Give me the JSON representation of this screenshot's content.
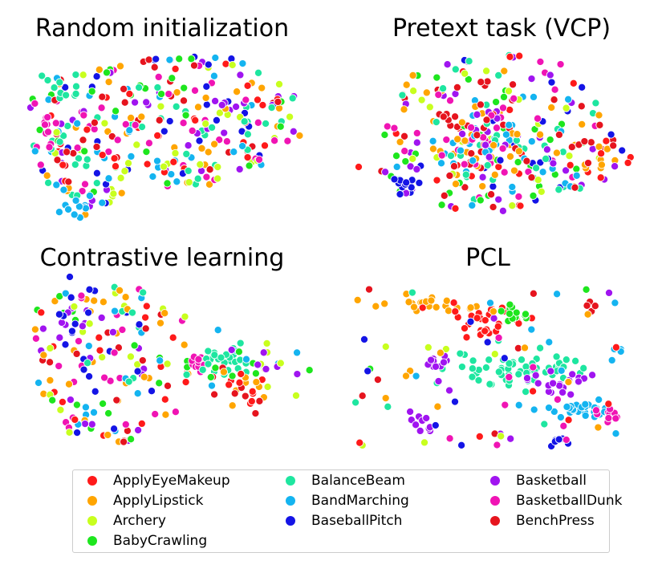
{
  "chart_data": {
    "type": "scatter",
    "panels": [
      {
        "title": "Random initialization"
      },
      {
        "title": "Pretext task (VCP)"
      },
      {
        "title": "Contrastive learning"
      },
      {
        "title": "PCL"
      }
    ],
    "legend": {
      "placement": "bottom",
      "entries": [
        {
          "label": "ApplyEyeMakeup",
          "color": "#ff1a1a"
        },
        {
          "label": "ApplyLipstick",
          "color": "#ffa500"
        },
        {
          "label": "Archery",
          "color": "#c8ff1e"
        },
        {
          "label": "BabyCrawling",
          "color": "#1ee61e"
        },
        {
          "label": "BalanceBeam",
          "color": "#1ee6a0"
        },
        {
          "label": "BandMarching",
          "color": "#14b4f0"
        },
        {
          "label": "BaseballPitch",
          "color": "#1414e6"
        },
        {
          "label": "Basketball",
          "color": "#a014f0"
        },
        {
          "label": "BasketballDunk",
          "color": "#f014b4"
        },
        {
          "label": "BenchPress",
          "color": "#e6141e"
        }
      ]
    },
    "axes_visible": false
  }
}
